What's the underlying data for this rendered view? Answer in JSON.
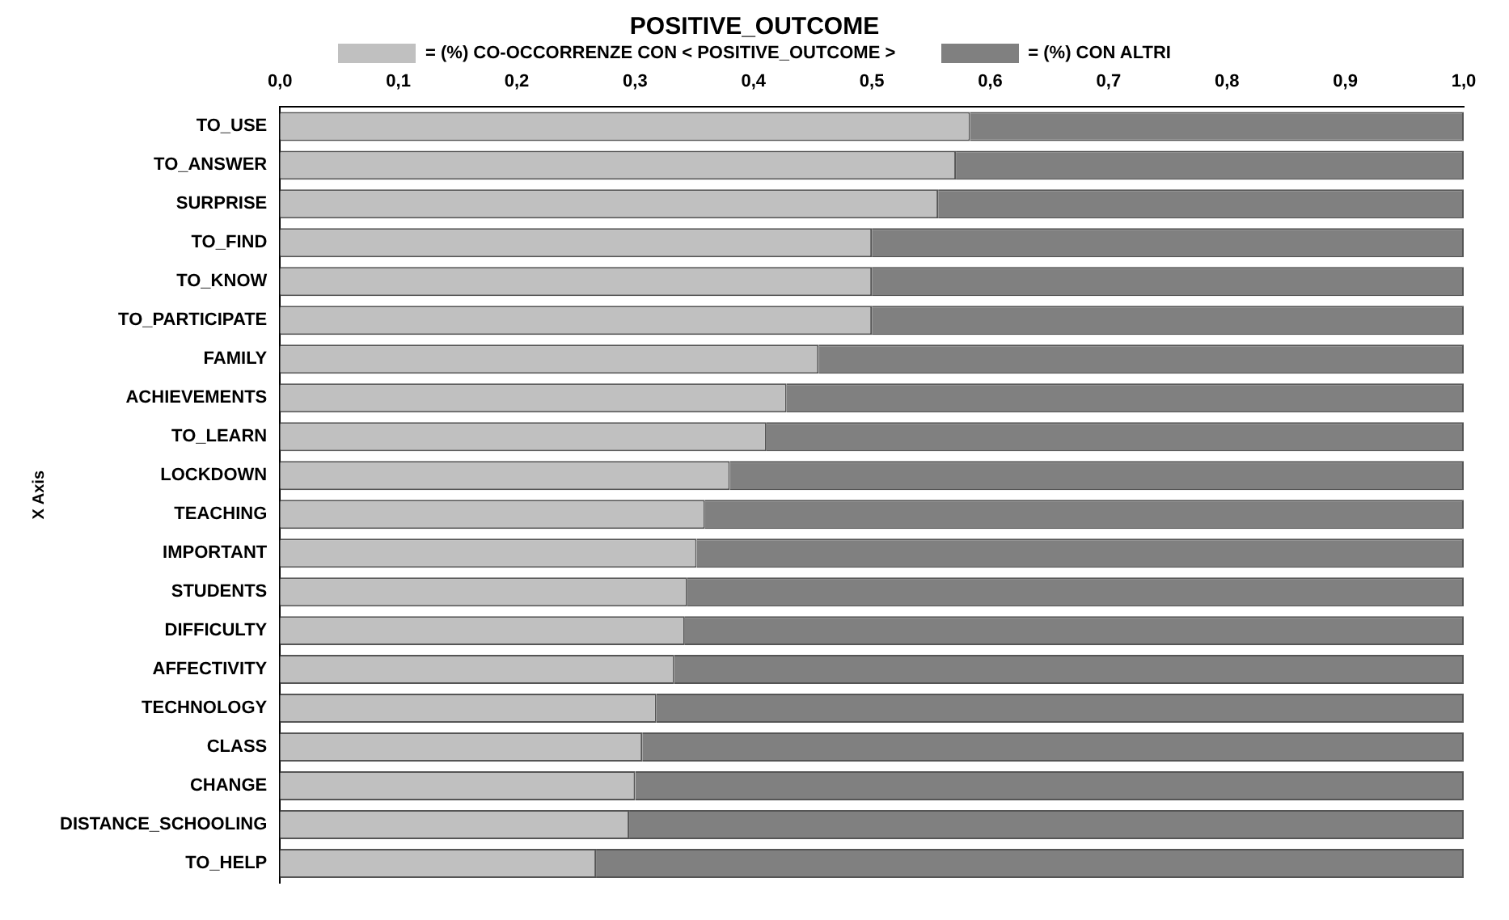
{
  "chart_data": {
    "type": "bar",
    "orientation": "horizontal",
    "stacked": true,
    "title": "POSITIVE_OUTCOME",
    "ylabel": "X Axis",
    "categories": [
      "TO_USE",
      "TO_ANSWER",
      "SURPRISE",
      "TO_FIND",
      "TO_KNOW",
      "TO_PARTICIPATE",
      "FAMILY",
      "ACHIEVEMENTS",
      "TO_LEARN",
      "LOCKDOWN",
      "TEACHING",
      "IMPORTANT",
      "STUDENTS",
      "DIFFICULTY",
      "AFFECTIVITY",
      "TECHNOLOGY",
      "CLASS",
      "CHANGE",
      "DISTANCE_SCHOOLING",
      "TO_HELP"
    ],
    "series": [
      {
        "name": "= (%) CO-OCCORRENZE CON < POSITIVE_OUTCOME >",
        "color": "#c0c0c0",
        "values": [
          0.583,
          0.571,
          0.556,
          0.5,
          0.5,
          0.5,
          0.455,
          0.428,
          0.411,
          0.38,
          0.359,
          0.352,
          0.344,
          0.342,
          0.333,
          0.318,
          0.306,
          0.3,
          0.295,
          0.267
        ]
      },
      {
        "name": "= (%) CON ALTRI",
        "color": "#808080",
        "values": [
          0.417,
          0.429,
          0.444,
          0.5,
          0.5,
          0.5,
          0.545,
          0.572,
          0.589,
          0.62,
          0.641,
          0.648,
          0.656,
          0.658,
          0.667,
          0.682,
          0.694,
          0.7,
          0.705,
          0.733
        ]
      }
    ],
    "xlim": [
      0,
      1
    ],
    "xticks": [
      {
        "value": 0,
        "label": "0,0"
      },
      {
        "value": 0.1,
        "label": "0,1"
      },
      {
        "value": 0.2,
        "label": "0,2"
      },
      {
        "value": 0.3,
        "label": "0,3"
      },
      {
        "value": 0.4,
        "label": "0,4"
      },
      {
        "value": 0.5,
        "label": "0,5"
      },
      {
        "value": 0.6,
        "label": "0,6"
      },
      {
        "value": 0.7,
        "label": "0,7"
      },
      {
        "value": 0.8,
        "label": "0,8"
      },
      {
        "value": 0.9,
        "label": "0,9"
      },
      {
        "value": 1,
        "label": "1,0"
      }
    ],
    "grid": false,
    "legend": "top"
  }
}
